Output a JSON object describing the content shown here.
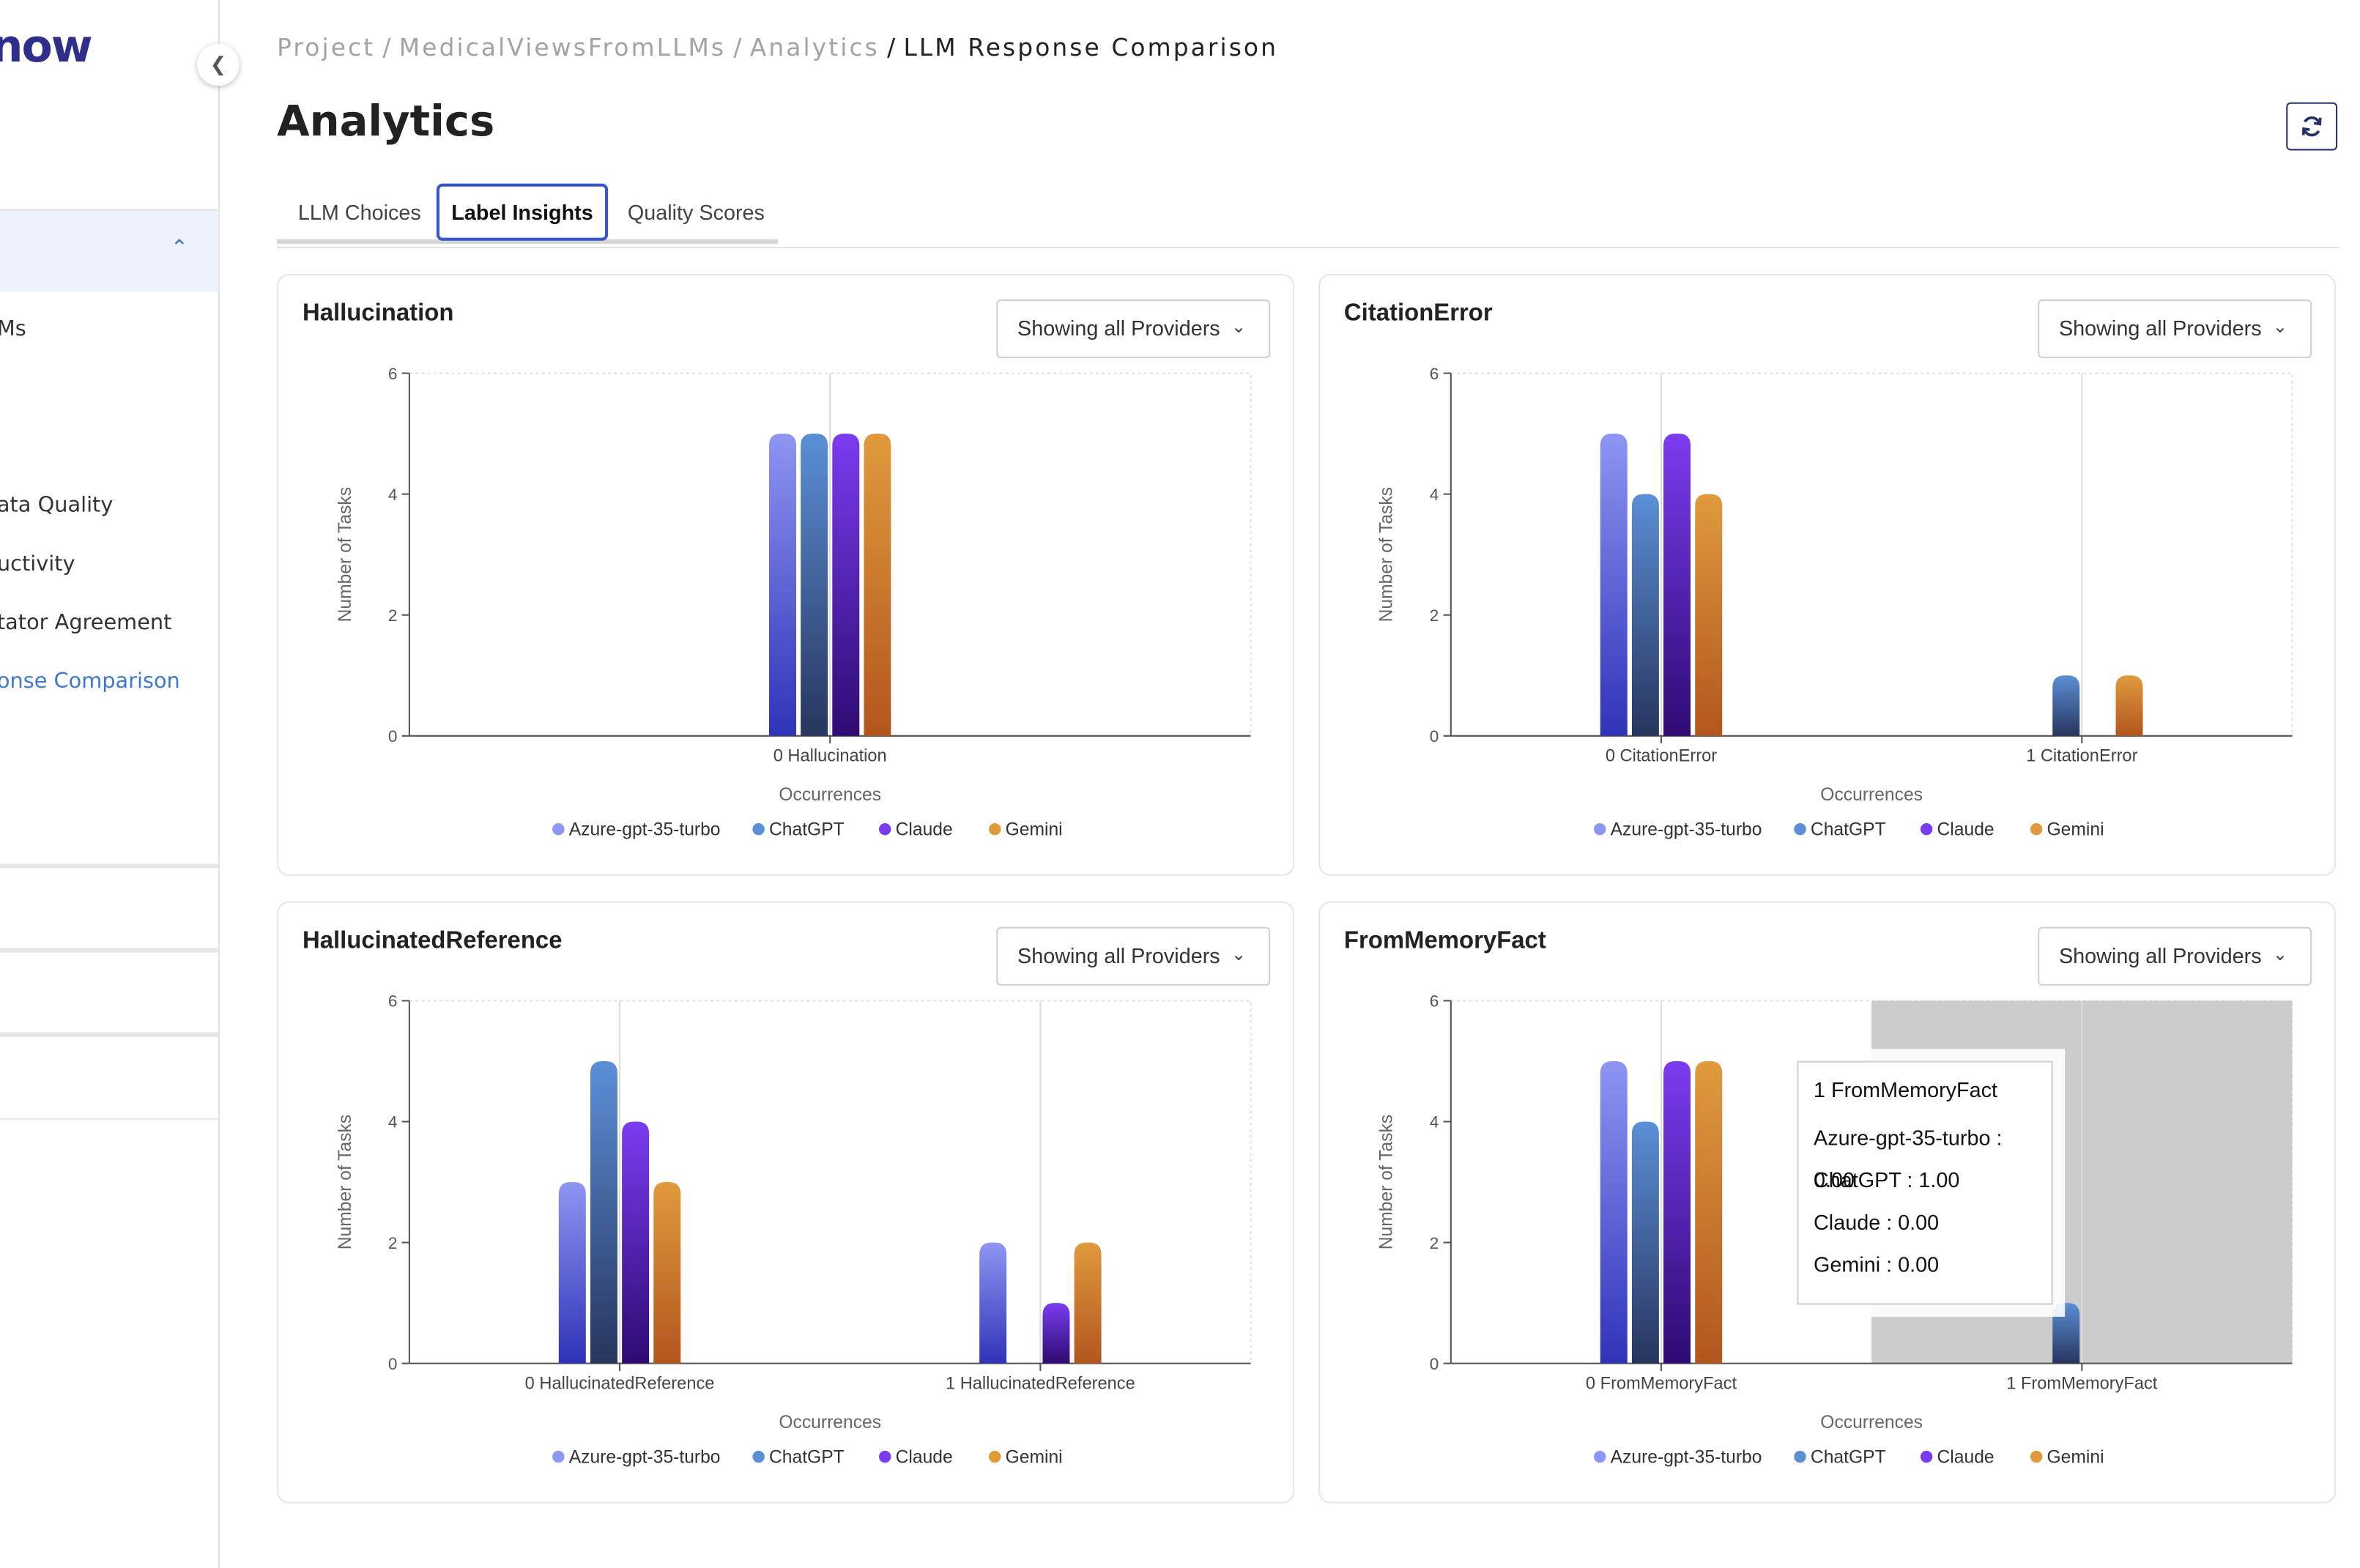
{
  "app": {
    "logo_text": "now"
  },
  "sidebar": {
    "items": [
      "Ms",
      "ata Quality",
      "uctivity",
      "tator Agreement",
      "onse Comparison"
    ]
  },
  "breadcrumb": {
    "items": [
      "Project",
      "MedicalViewsFromLLMs",
      "Analytics"
    ],
    "current": "LLM Response Comparison"
  },
  "page": {
    "title": "Analytics"
  },
  "tabs": [
    {
      "label": "LLM Choices"
    },
    {
      "label": "Label Insights",
      "active": true
    },
    {
      "label": "Quality Scores"
    }
  ],
  "select_label": "Showing all Providers",
  "colors": {
    "Azure-gpt-35-turbo": [
      "#8f95f2",
      "#2f33b8"
    ],
    "ChatGPT": [
      "#5b8fd6",
      "#27355e"
    ],
    "Claude": [
      "#7b3cf0",
      "#2d0b72"
    ],
    "Gemini": [
      "#e09a3c",
      "#b2561e"
    ]
  },
  "tooltip": {
    "title": "1 FromMemoryFact",
    "rows": [
      "Azure-gpt-35-turbo : 0.00",
      "ChatGPT : 1.00",
      "Claude : 0.00",
      "Gemini : 0.00"
    ]
  },
  "chart_data": [
    {
      "type": "bar",
      "title": "Hallucination",
      "xlabel": "Occurrences",
      "ylabel": "Number of Tasks",
      "ylim": [
        0,
        6
      ],
      "yticks": [
        0,
        2,
        4,
        6
      ],
      "categories": [
        "0 Hallucination"
      ],
      "series": [
        {
          "name": "Azure-gpt-35-turbo",
          "values": [
            5
          ]
        },
        {
          "name": "ChatGPT",
          "values": [
            5
          ]
        },
        {
          "name": "Claude",
          "values": [
            5
          ]
        },
        {
          "name": "Gemini",
          "values": [
            5
          ]
        }
      ],
      "legend": "bottom"
    },
    {
      "type": "bar",
      "title": "CitationError",
      "xlabel": "Occurrences",
      "ylabel": "Number of Tasks",
      "ylim": [
        0,
        6
      ],
      "yticks": [
        0,
        2,
        4,
        6
      ],
      "categories": [
        "0 CitationError",
        "1 CitationError"
      ],
      "series": [
        {
          "name": "Azure-gpt-35-turbo",
          "values": [
            5,
            0
          ]
        },
        {
          "name": "ChatGPT",
          "values": [
            4,
            1
          ]
        },
        {
          "name": "Claude",
          "values": [
            5,
            0
          ]
        },
        {
          "name": "Gemini",
          "values": [
            4,
            1
          ]
        }
      ],
      "legend": "bottom"
    },
    {
      "type": "bar",
      "title": "HallucinatedReference",
      "xlabel": "Occurrences",
      "ylabel": "Number of Tasks",
      "ylim": [
        0,
        6
      ],
      "yticks": [
        0,
        2,
        4,
        6
      ],
      "categories": [
        "0 HallucinatedReference",
        "1 HallucinatedReference"
      ],
      "series": [
        {
          "name": "Azure-gpt-35-turbo",
          "values": [
            3,
            2
          ]
        },
        {
          "name": "ChatGPT",
          "values": [
            5,
            0
          ]
        },
        {
          "name": "Claude",
          "values": [
            4,
            1
          ]
        },
        {
          "name": "Gemini",
          "values": [
            3,
            2
          ]
        }
      ],
      "legend": "bottom"
    },
    {
      "type": "bar",
      "title": "FromMemoryFact",
      "xlabel": "Occurrences",
      "ylabel": "Number of Tasks",
      "ylim": [
        0,
        6
      ],
      "yticks": [
        0,
        2,
        4,
        6
      ],
      "categories": [
        "0 FromMemoryFact",
        "1 FromMemoryFact"
      ],
      "series": [
        {
          "name": "Azure-gpt-35-turbo",
          "values": [
            5,
            0
          ]
        },
        {
          "name": "ChatGPT",
          "values": [
            4,
            1
          ]
        },
        {
          "name": "Claude",
          "values": [
            5,
            0
          ]
        },
        {
          "name": "Gemini",
          "values": [
            5,
            0
          ]
        }
      ],
      "legend": "bottom",
      "hovered_category": "1 FromMemoryFact"
    }
  ]
}
